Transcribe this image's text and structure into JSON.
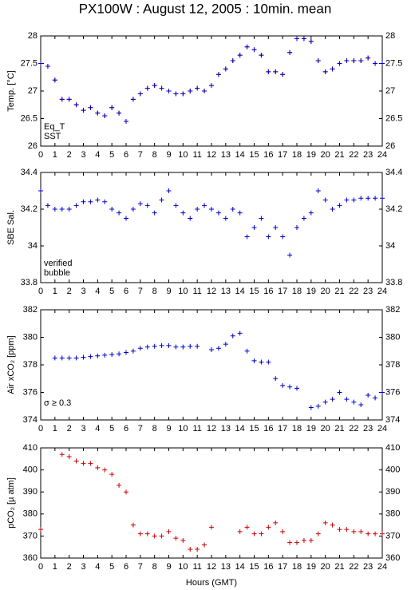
{
  "title": "PX100W : August 12, 2005 : 10min. mean",
  "xlabel": "Hours (GMT)",
  "chart_data": [
    {
      "type": "scatter",
      "ylabel": "Temp. [°C]",
      "x": [
        0,
        0.5,
        1,
        1.5,
        2,
        2.5,
        3,
        3.5,
        4,
        4.5,
        5,
        5.5,
        6,
        6.5,
        7,
        7.5,
        8,
        8.5,
        9,
        9.5,
        10,
        10.5,
        11,
        11.5,
        12,
        12.5,
        13,
        13.5,
        14,
        14.5,
        15,
        15.5,
        16,
        16.5,
        17,
        17.5,
        18,
        18.5,
        19,
        19.5,
        20,
        20.5,
        21,
        21.5,
        22,
        22.5,
        23,
        23.5,
        24
      ],
      "xlim": [
        0,
        24
      ],
      "xticks": [
        0,
        1,
        2,
        3,
        4,
        5,
        6,
        7,
        8,
        9,
        10,
        11,
        12,
        13,
        14,
        15,
        16,
        17,
        18,
        19,
        20,
        21,
        22,
        23,
        24
      ],
      "ylim": [
        26,
        28
      ],
      "yticks": [
        26,
        26.5,
        27,
        27.5,
        28
      ],
      "series": [
        {
          "name": "Eq_T",
          "color": "#cc0000",
          "values": [
            27.5,
            27.45,
            27.2,
            26.85,
            26.85,
            26.75,
            26.65,
            26.7,
            26.6,
            26.55,
            26.7,
            26.6,
            26.45,
            26.85,
            26.95,
            27.05,
            27.1,
            27.05,
            27,
            26.95,
            26.95,
            27,
            27.05,
            27,
            27.1,
            27.3,
            27.4,
            27.55,
            27.65,
            27.8,
            27.75,
            27.65,
            27.35,
            27.35,
            27.3,
            27.7,
            27.95,
            27.95,
            27.9,
            27.55,
            27.35,
            27.4,
            27.5,
            27.55,
            27.55,
            27.55,
            27.6,
            27.5,
            27.5
          ]
        },
        {
          "name": "SST",
          "color": "#0000cc",
          "values": [
            27.5,
            27.45,
            27.2,
            26.85,
            26.85,
            26.75,
            26.65,
            26.7,
            26.6,
            26.55,
            26.7,
            26.6,
            26.45,
            26.85,
            26.95,
            27.05,
            27.1,
            27.05,
            27,
            26.95,
            26.95,
            27,
            27.05,
            27,
            27.1,
            27.3,
            27.4,
            27.55,
            27.65,
            27.8,
            27.75,
            27.65,
            27.35,
            27.35,
            27.3,
            27.7,
            27.95,
            27.95,
            27.9,
            27.55,
            27.35,
            27.4,
            27.5,
            27.55,
            27.55,
            27.55,
            27.6,
            27.5,
            27.5
          ]
        }
      ]
    },
    {
      "type": "scatter",
      "ylabel": "SBE Sal.",
      "x": [
        0,
        0.5,
        1,
        1.5,
        2,
        2.5,
        3,
        3.5,
        4,
        4.5,
        5,
        5.5,
        6,
        6.5,
        7,
        7.5,
        8,
        8.5,
        9,
        9.5,
        10,
        10.5,
        11,
        11.5,
        12,
        12.5,
        13,
        13.5,
        14,
        14.5,
        15,
        15.5,
        16,
        16.5,
        17,
        17.5,
        18,
        18.5,
        19,
        19.5,
        20,
        20.5,
        21,
        21.5,
        22,
        22.5,
        23,
        23.5,
        24
      ],
      "xlim": [
        0,
        24
      ],
      "xticks": [
        0,
        1,
        2,
        3,
        4,
        5,
        6,
        7,
        8,
        9,
        10,
        11,
        12,
        13,
        14,
        15,
        16,
        17,
        18,
        19,
        20,
        21,
        22,
        23,
        24
      ],
      "ylim": [
        33.8,
        34.4
      ],
      "yticks": [
        33.8,
        34,
        34.2,
        34.4
      ],
      "series": [
        {
          "name": "verified",
          "color": "#0000cc",
          "values": [
            34.3,
            34.22,
            34.2,
            34.2,
            34.2,
            34.22,
            34.24,
            34.24,
            34.25,
            34.24,
            34.2,
            34.18,
            34.15,
            34.2,
            34.23,
            34.22,
            34.18,
            34.25,
            34.3,
            34.22,
            34.18,
            34.15,
            34.2,
            34.22,
            34.2,
            34.18,
            34.15,
            34.2,
            34.18,
            34.05,
            34.1,
            34.15,
            34.05,
            34.1,
            34.05,
            33.95,
            34.1,
            34.15,
            34.18,
            34.3,
            34.25,
            34.2,
            34.22,
            34.25,
            34.25,
            34.26,
            34.26,
            34.26,
            34.26
          ]
        }
      ],
      "annotations": [
        {
          "text": "bubble",
          "color": "#cc00cc"
        }
      ]
    },
    {
      "type": "scatter",
      "ylabel": "Air xCO₂ [ppm]",
      "x": [
        0,
        0.5,
        1,
        1.5,
        2,
        2.5,
        3,
        3.5,
        4,
        4.5,
        5,
        5.5,
        6,
        6.5,
        7,
        7.5,
        8,
        8.5,
        9,
        9.5,
        10,
        10.5,
        11,
        11.5,
        12,
        12.5,
        13,
        13.5,
        14,
        14.5,
        15,
        15.5,
        16,
        16.5,
        17,
        17.5,
        18,
        18.5,
        19,
        19.5,
        20,
        20.5,
        21,
        21.5,
        22,
        22.5,
        23,
        23.5,
        24
      ],
      "xlim": [
        0,
        24
      ],
      "xticks": [
        0,
        1,
        2,
        3,
        4,
        5,
        6,
        7,
        8,
        9,
        10,
        11,
        12,
        13,
        14,
        15,
        16,
        17,
        18,
        19,
        20,
        21,
        22,
        23,
        24
      ],
      "ylim": [
        374,
        382
      ],
      "yticks": [
        374,
        376,
        378,
        380,
        382
      ],
      "series": [
        {
          "color": "#0000cc",
          "values": [
            null,
            null,
            378.5,
            378.5,
            378.5,
            378.5,
            378.55,
            378.6,
            378.65,
            378.7,
            378.75,
            378.8,
            378.9,
            379,
            379.2,
            379.3,
            379.35,
            379.4,
            379.4,
            379.3,
            379.3,
            379.35,
            379.35,
            null,
            379.1,
            379.2,
            379.5,
            380.1,
            380.3,
            379,
            378.3,
            378.2,
            378.2,
            377,
            376.5,
            376.4,
            376.3,
            null,
            374.9,
            375,
            375.3,
            375.5,
            376,
            375.5,
            375.3,
            375.1,
            375.8,
            375.6,
            376
          ]
        }
      ],
      "annotations": [
        {
          "text": "σ ≥ 0.3",
          "color": "#cc00cc"
        }
      ]
    },
    {
      "type": "scatter",
      "ylabel": "pCO₂ [µ atm]",
      "x": [
        0,
        0.5,
        1,
        1.5,
        2,
        2.5,
        3,
        3.5,
        4,
        4.5,
        5,
        5.5,
        6,
        6.5,
        7,
        7.5,
        8,
        8.5,
        9,
        9.5,
        10,
        10.5,
        11,
        11.5,
        12,
        12.5,
        13,
        13.5,
        14,
        14.5,
        15,
        15.5,
        16,
        16.5,
        17,
        17.5,
        18,
        18.5,
        19,
        19.5,
        20,
        20.5,
        21,
        21.5,
        22,
        22.5,
        23,
        23.5,
        24
      ],
      "xlim": [
        0,
        24
      ],
      "xticks": [
        0,
        1,
        2,
        3,
        4,
        5,
        6,
        7,
        8,
        9,
        10,
        11,
        12,
        13,
        14,
        15,
        16,
        17,
        18,
        19,
        20,
        21,
        22,
        23,
        24
      ],
      "ylim": [
        360,
        410
      ],
      "yticks": [
        360,
        370,
        380,
        390,
        400,
        410
      ],
      "series": [
        {
          "color": "#cc0000",
          "values": [
            373,
            null,
            null,
            407,
            406,
            404,
            403,
            403,
            401,
            400,
            398,
            393,
            390,
            375,
            371,
            371,
            370,
            370,
            372,
            369,
            368,
            364,
            364,
            366,
            374,
            null,
            null,
            null,
            372,
            374,
            371,
            371,
            374,
            376,
            372,
            367,
            367,
            368,
            368,
            371,
            376,
            375,
            373,
            373,
            372,
            372,
            371,
            371,
            371
          ]
        }
      ]
    }
  ]
}
